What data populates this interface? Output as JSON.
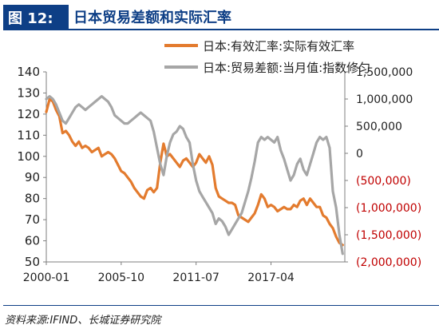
{
  "header": {
    "figure_label": "图 12:",
    "title": "日本贸易差额和实际汇率"
  },
  "source": "资料来源:IFIND、长城证券研究院",
  "colors": {
    "header": "#0e3f86",
    "series_orange": "#e37b2e",
    "series_gray": "#a6a6a6",
    "negative_tick": "#c00000"
  },
  "chart_data": {
    "type": "line",
    "title": "",
    "x_ticks": [
      "2000-01",
      "2005-10",
      "2011-07",
      "2017-04"
    ],
    "x_range": [
      "2000-01",
      "2022-12"
    ],
    "left_axis": {
      "ticks": [
        140,
        130,
        120,
        110,
        100,
        90,
        80,
        70,
        60,
        50
      ],
      "ylim": [
        50,
        140
      ]
    },
    "right_axis": {
      "ticks": [
        1500000,
        1000000,
        500000,
        0,
        -500000,
        -1000000,
        -1500000,
        -2000000
      ],
      "tick_labels": [
        "1,500,000",
        "1,000,000",
        "500,000",
        "0",
        "(500,000)",
        "(1,000,000)",
        "(1,500,000)",
        "(2,000,000)"
      ],
      "ylim": [
        -2000000,
        1500000
      ]
    },
    "legend_position": "top-right",
    "grid": false,
    "series": [
      {
        "name": "日本:有效汇率:实际有效汇率",
        "axis": "left",
        "color": "#e37b2e",
        "points": [
          [
            "2000-01",
            121
          ],
          [
            "2000-04",
            127
          ],
          [
            "2000-07",
            126
          ],
          [
            "2000-10",
            122
          ],
          [
            "2001-01",
            119
          ],
          [
            "2001-04",
            111
          ],
          [
            "2001-07",
            112
          ],
          [
            "2001-10",
            110
          ],
          [
            "2002-01",
            107
          ],
          [
            "2002-04",
            105
          ],
          [
            "2002-07",
            107
          ],
          [
            "2002-10",
            104
          ],
          [
            "2003-01",
            105
          ],
          [
            "2003-04",
            104
          ],
          [
            "2003-07",
            102
          ],
          [
            "2003-10",
            103
          ],
          [
            "2004-01",
            104
          ],
          [
            "2004-04",
            100
          ],
          [
            "2004-07",
            101
          ],
          [
            "2004-10",
            102
          ],
          [
            "2005-01",
            101
          ],
          [
            "2005-04",
            99
          ],
          [
            "2005-07",
            96
          ],
          [
            "2005-10",
            93
          ],
          [
            "2006-01",
            92
          ],
          [
            "2006-04",
            90
          ],
          [
            "2006-07",
            88
          ],
          [
            "2006-10",
            85
          ],
          [
            "2007-01",
            83
          ],
          [
            "2007-04",
            81
          ],
          [
            "2007-07",
            80
          ],
          [
            "2007-10",
            84
          ],
          [
            "2008-01",
            85
          ],
          [
            "2008-04",
            83
          ],
          [
            "2008-07",
            85
          ],
          [
            "2008-10",
            97
          ],
          [
            "2009-01",
            106
          ],
          [
            "2009-04",
            100
          ],
          [
            "2009-07",
            101
          ],
          [
            "2009-10",
            99
          ],
          [
            "2010-01",
            97
          ],
          [
            "2010-04",
            95
          ],
          [
            "2010-07",
            98
          ],
          [
            "2010-10",
            99
          ],
          [
            "2011-01",
            97
          ],
          [
            "2011-04",
            95
          ],
          [
            "2011-07",
            97
          ],
          [
            "2011-10",
            101
          ],
          [
            "2012-01",
            99
          ],
          [
            "2012-04",
            97
          ],
          [
            "2012-07",
            100
          ],
          [
            "2012-10",
            96
          ],
          [
            "2013-01",
            85
          ],
          [
            "2013-04",
            81
          ],
          [
            "2013-07",
            80
          ],
          [
            "2013-10",
            79
          ],
          [
            "2014-01",
            78
          ],
          [
            "2014-04",
            78
          ],
          [
            "2014-07",
            77
          ],
          [
            "2014-10",
            72
          ],
          [
            "2015-01",
            71
          ],
          [
            "2015-04",
            70
          ],
          [
            "2015-07",
            69
          ],
          [
            "2015-10",
            71
          ],
          [
            "2016-01",
            73
          ],
          [
            "2016-04",
            77
          ],
          [
            "2016-07",
            82
          ],
          [
            "2016-10",
            80
          ],
          [
            "2017-01",
            76
          ],
          [
            "2017-04",
            77
          ],
          [
            "2017-07",
            76
          ],
          [
            "2017-10",
            74
          ],
          [
            "2018-01",
            75
          ],
          [
            "2018-04",
            76
          ],
          [
            "2018-07",
            75
          ],
          [
            "2018-10",
            75
          ],
          [
            "2019-01",
            77
          ],
          [
            "2019-04",
            76
          ],
          [
            "2019-07",
            79
          ],
          [
            "2019-10",
            80
          ],
          [
            "2020-01",
            77
          ],
          [
            "2020-04",
            80
          ],
          [
            "2020-07",
            78
          ],
          [
            "2020-10",
            76
          ],
          [
            "2021-01",
            76
          ],
          [
            "2021-04",
            72
          ],
          [
            "2021-07",
            71
          ],
          [
            "2021-10",
            68
          ],
          [
            "2022-01",
            66
          ],
          [
            "2022-04",
            62
          ],
          [
            "2022-07",
            59
          ],
          [
            "2022-10",
            58
          ]
        ]
      },
      {
        "name": "日本:贸易差额:当月值:指数修匀",
        "axis": "right",
        "color": "#a6a6a6",
        "points": [
          [
            "2000-01",
            1000000
          ],
          [
            "2000-04",
            1050000
          ],
          [
            "2000-07",
            1000000
          ],
          [
            "2000-10",
            900000
          ],
          [
            "2001-01",
            750000
          ],
          [
            "2001-04",
            600000
          ],
          [
            "2001-07",
            550000
          ],
          [
            "2001-10",
            650000
          ],
          [
            "2002-01",
            750000
          ],
          [
            "2002-04",
            850000
          ],
          [
            "2002-07",
            900000
          ],
          [
            "2002-10",
            850000
          ],
          [
            "2003-01",
            800000
          ],
          [
            "2003-04",
            850000
          ],
          [
            "2003-07",
            900000
          ],
          [
            "2003-10",
            950000
          ],
          [
            "2004-01",
            1000000
          ],
          [
            "2004-04",
            1050000
          ],
          [
            "2004-07",
            1000000
          ],
          [
            "2004-10",
            950000
          ],
          [
            "2005-01",
            850000
          ],
          [
            "2005-04",
            700000
          ],
          [
            "2005-07",
            650000
          ],
          [
            "2005-10",
            600000
          ],
          [
            "2006-01",
            550000
          ],
          [
            "2006-04",
            550000
          ],
          [
            "2006-07",
            600000
          ],
          [
            "2006-10",
            650000
          ],
          [
            "2007-01",
            700000
          ],
          [
            "2007-04",
            750000
          ],
          [
            "2007-07",
            700000
          ],
          [
            "2007-10",
            650000
          ],
          [
            "2008-01",
            600000
          ],
          [
            "2008-04",
            400000
          ],
          [
            "2008-07",
            100000
          ],
          [
            "2008-10",
            -200000
          ],
          [
            "2009-01",
            -400000
          ],
          [
            "2009-04",
            -50000
          ],
          [
            "2009-07",
            200000
          ],
          [
            "2009-10",
            350000
          ],
          [
            "2010-01",
            400000
          ],
          [
            "2010-04",
            500000
          ],
          [
            "2010-07",
            450000
          ],
          [
            "2010-10",
            300000
          ],
          [
            "2011-01",
            200000
          ],
          [
            "2011-04",
            -200000
          ],
          [
            "2011-07",
            -500000
          ],
          [
            "2011-10",
            -700000
          ],
          [
            "2012-01",
            -800000
          ],
          [
            "2012-04",
            -900000
          ],
          [
            "2012-07",
            -1000000
          ],
          [
            "2012-10",
            -1100000
          ],
          [
            "2013-01",
            -1300000
          ],
          [
            "2013-04",
            -1200000
          ],
          [
            "2013-07",
            -1250000
          ],
          [
            "2013-10",
            -1350000
          ],
          [
            "2014-01",
            -1500000
          ],
          [
            "2014-04",
            -1400000
          ],
          [
            "2014-07",
            -1300000
          ],
          [
            "2014-10",
            -1200000
          ],
          [
            "2015-01",
            -1100000
          ],
          [
            "2015-04",
            -900000
          ],
          [
            "2015-07",
            -700000
          ],
          [
            "2015-10",
            -450000
          ],
          [
            "2016-01",
            -150000
          ],
          [
            "2016-04",
            200000
          ],
          [
            "2016-07",
            300000
          ],
          [
            "2016-10",
            250000
          ],
          [
            "2017-01",
            300000
          ],
          [
            "2017-04",
            250000
          ],
          [
            "2017-07",
            200000
          ],
          [
            "2017-10",
            300000
          ],
          [
            "2018-01",
            50000
          ],
          [
            "2018-04",
            -100000
          ],
          [
            "2018-07",
            -300000
          ],
          [
            "2018-10",
            -500000
          ],
          [
            "2019-01",
            -400000
          ],
          [
            "2019-04",
            -200000
          ],
          [
            "2019-07",
            -100000
          ],
          [
            "2019-10",
            -300000
          ],
          [
            "2020-01",
            -400000
          ],
          [
            "2020-04",
            -200000
          ],
          [
            "2020-07",
            0
          ],
          [
            "2020-10",
            200000
          ],
          [
            "2021-01",
            300000
          ],
          [
            "2021-04",
            250000
          ],
          [
            "2021-07",
            300000
          ],
          [
            "2021-10",
            100000
          ],
          [
            "2022-01",
            -700000
          ],
          [
            "2022-04",
            -1000000
          ],
          [
            "2022-07",
            -1500000
          ],
          [
            "2022-10",
            -1850000
          ]
        ]
      }
    ]
  }
}
